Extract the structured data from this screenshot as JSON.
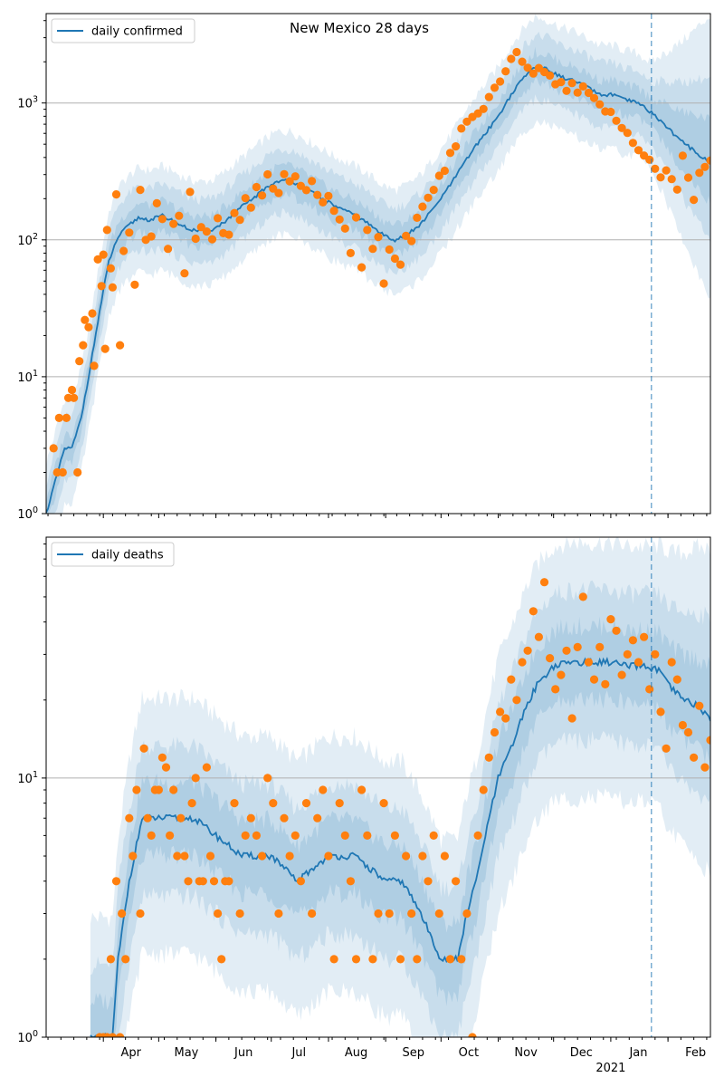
{
  "title": "New Mexico 28 days",
  "colors": {
    "line": "#1f77b4",
    "points": "#ff7f0e",
    "band": "#1f77b4",
    "grid": "#b0b0b0",
    "vline": "#1f77b4"
  },
  "x_axis": {
    "start": "2020-03-01",
    "end": "2021-02-24",
    "month_labels": [
      {
        "date": "2020-04-01",
        "label": "Apr"
      },
      {
        "date": "2020-05-01",
        "label": "May"
      },
      {
        "date": "2020-06-01",
        "label": "Jun"
      },
      {
        "date": "2020-07-01",
        "label": "Jul"
      },
      {
        "date": "2020-08-01",
        "label": "Aug"
      },
      {
        "date": "2020-09-01",
        "label": "Sep"
      },
      {
        "date": "2020-10-01",
        "label": "Oct"
      },
      {
        "date": "2020-11-01",
        "label": "Nov"
      },
      {
        "date": "2020-12-01",
        "label": "Dec"
      },
      {
        "date": "2021-01-01",
        "label": "Jan"
      },
      {
        "date": "2021-02-01",
        "label": "Feb"
      }
    ],
    "year_label": "2021",
    "forecast_start": "2021-01-23"
  },
  "chart_data": [
    {
      "type": "line",
      "scale": "log",
      "ylim": [
        1,
        4500
      ],
      "yticks": [
        {
          "v": 1,
          "label": "10^0"
        },
        {
          "v": 10,
          "label": "10^1"
        },
        {
          "v": 100,
          "label": "10^2"
        },
        {
          "v": 1000,
          "label": "10^3"
        }
      ],
      "legend": "daily confirmed",
      "legend_loc": "upper-left",
      "grid": "horizontal",
      "model": {
        "dates": [
          "2020-03-01",
          "2020-03-11",
          "2020-03-15",
          "2020-03-20",
          "2020-03-25",
          "2020-03-30",
          "2020-04-04",
          "2020-04-09",
          "2020-04-14",
          "2020-04-20",
          "2020-04-26",
          "2020-05-03",
          "2020-05-10",
          "2020-05-17",
          "2020-05-24",
          "2020-05-31",
          "2020-06-07",
          "2020-06-14",
          "2020-06-21",
          "2020-06-28",
          "2020-07-05",
          "2020-07-12",
          "2020-07-19",
          "2020-07-26",
          "2020-08-02",
          "2020-08-09",
          "2020-08-16",
          "2020-08-23",
          "2020-08-30",
          "2020-09-06",
          "2020-09-13",
          "2020-09-20",
          "2020-09-27",
          "2020-10-04",
          "2020-10-11",
          "2020-10-18",
          "2020-10-25",
          "2020-11-01",
          "2020-11-08",
          "2020-11-15",
          "2020-11-21",
          "2020-11-28",
          "2020-12-05",
          "2020-12-12",
          "2020-12-19",
          "2020-12-26",
          "2021-01-02",
          "2021-01-09",
          "2021-01-16",
          "2021-01-23",
          "2021-01-30",
          "2021-02-06",
          "2021-02-13",
          "2021-02-20",
          "2021-02-24"
        ],
        "values": [
          1,
          3,
          3,
          5,
          12,
          30,
          70,
          105,
          125,
          145,
          140,
          150,
          135,
          120,
          115,
          120,
          140,
          170,
          200,
          240,
          270,
          270,
          240,
          210,
          185,
          165,
          150,
          130,
          110,
          100,
          110,
          130,
          170,
          230,
          320,
          450,
          600,
          800,
          1150,
          1550,
          1850,
          1750,
          1550,
          1450,
          1300,
          1150,
          1150,
          1050,
          1000,
          850,
          700,
          560,
          470,
          400,
          360
        ],
        "band_inner": [
          0.78,
          1.28
        ],
        "band_mid": [
          0.58,
          1.7
        ],
        "band_outer": [
          0.4,
          2.3
        ],
        "forecast_outer": [
          0.1,
          12
        ]
      },
      "observed": {
        "dates": [
          "2020-03-05",
          "2020-03-07",
          "2020-03-08",
          "2020-03-10",
          "2020-03-12",
          "2020-03-13",
          "2020-03-15",
          "2020-03-16",
          "2020-03-18",
          "2020-03-19",
          "2020-03-21",
          "2020-03-22",
          "2020-03-24",
          "2020-03-26",
          "2020-03-27",
          "2020-03-29",
          "2020-03-31",
          "2020-04-01",
          "2020-04-02",
          "2020-04-03",
          "2020-04-05",
          "2020-04-06",
          "2020-04-08",
          "2020-04-10",
          "2020-04-12",
          "2020-04-15",
          "2020-04-18",
          "2020-04-21",
          "2020-04-24",
          "2020-04-27",
          "2020-04-30",
          "2020-05-03",
          "2020-05-06",
          "2020-05-09",
          "2020-05-12",
          "2020-05-15",
          "2020-05-18",
          "2020-05-21",
          "2020-05-24",
          "2020-05-27",
          "2020-05-30",
          "2020-06-02",
          "2020-06-05",
          "2020-06-08",
          "2020-06-11",
          "2020-06-14",
          "2020-06-17",
          "2020-06-20",
          "2020-06-23",
          "2020-06-26",
          "2020-06-29",
          "2020-07-02",
          "2020-07-05",
          "2020-07-08",
          "2020-07-11",
          "2020-07-14",
          "2020-07-17",
          "2020-07-20",
          "2020-07-23",
          "2020-07-26",
          "2020-07-29",
          "2020-08-01",
          "2020-08-04",
          "2020-08-07",
          "2020-08-10",
          "2020-08-13",
          "2020-08-16",
          "2020-08-19",
          "2020-08-22",
          "2020-08-25",
          "2020-08-28",
          "2020-08-31",
          "2020-09-03",
          "2020-09-06",
          "2020-09-09",
          "2020-09-12",
          "2020-09-15",
          "2020-09-18",
          "2020-09-21",
          "2020-09-24",
          "2020-09-27",
          "2020-09-30",
          "2020-10-03",
          "2020-10-06",
          "2020-10-09",
          "2020-10-12",
          "2020-10-15",
          "2020-10-18",
          "2020-10-21",
          "2020-10-24",
          "2020-10-27",
          "2020-10-30",
          "2020-11-02",
          "2020-11-05",
          "2020-11-08",
          "2020-11-11",
          "2020-11-14",
          "2020-11-17",
          "2020-11-20",
          "2020-11-23",
          "2020-11-26",
          "2020-11-29",
          "2020-12-02",
          "2020-12-05",
          "2020-12-08",
          "2020-12-11",
          "2020-12-14",
          "2020-12-17",
          "2020-12-20",
          "2020-12-23",
          "2020-12-26",
          "2020-12-29",
          "2021-01-01",
          "2021-01-04",
          "2021-01-07",
          "2021-01-10",
          "2021-01-13",
          "2021-01-16",
          "2021-01-19",
          "2021-01-22",
          "2021-01-25",
          "2021-01-28",
          "2021-01-31",
          "2021-02-03",
          "2021-02-06",
          "2021-02-09",
          "2021-02-12",
          "2021-02-15",
          "2021-02-18",
          "2021-02-21",
          "2021-02-24"
        ],
        "values": [
          3,
          2,
          5,
          2,
          5,
          7,
          8,
          7,
          2,
          13,
          17,
          26,
          23,
          29,
          12,
          72,
          46,
          78,
          16,
          118,
          62,
          45,
          215,
          17,
          83,
          113,
          47,
          232,
          100,
          106,
          185,
          142,
          86,
          131,
          150,
          57,
          224,
          102,
          124,
          115,
          101,
          144,
          112,
          109,
          157,
          140,
          202,
          172,
          243,
          211,
          301,
          237,
          220,
          302,
          268,
          291,
          248,
          231,
          269,
          213,
          188,
          209,
          163,
          141,
          121,
          80,
          146,
          63,
          118,
          86,
          105,
          48,
          85,
          73,
          66,
          107,
          98,
          145,
          175,
          203,
          232,
          294,
          320,
          432,
          482,
          651,
          731,
          791,
          839,
          905,
          1105,
          1292,
          1435,
          1704,
          2099,
          2353,
          2003,
          1809,
          1641,
          1802,
          1683,
          1586,
          1370,
          1423,
          1227,
          1398,
          1191,
          1322,
          1186,
          1085,
          978,
          868,
          861,
          742,
          657,
          605,
          511,
          452,
          413,
          385,
          331,
          286,
          322,
          278,
          233,
          412,
          285,
          196,
          309,
          341,
          380
        ]
      }
    },
    {
      "type": "line",
      "scale": "log",
      "ylim": [
        1,
        85
      ],
      "yticks": [
        {
          "v": 1,
          "label": "10^0"
        },
        {
          "v": 10,
          "label": "10^1"
        }
      ],
      "legend": "daily deaths",
      "legend_loc": "upper-left",
      "grid": "horizontal",
      "model": {
        "dates": [
          "2020-03-25",
          "2020-03-30",
          "2020-04-06",
          "2020-04-09",
          "2020-04-15",
          "2020-04-22",
          "2020-05-01",
          "2020-05-10",
          "2020-05-20",
          "2020-06-01",
          "2020-06-15",
          "2020-07-01",
          "2020-07-15",
          "2020-08-01",
          "2020-08-15",
          "2020-09-01",
          "2020-09-10",
          "2020-09-20",
          "2020-10-01",
          "2020-10-10",
          "2020-10-15",
          "2020-10-20",
          "2020-10-25",
          "2020-11-01",
          "2020-11-08",
          "2020-11-15",
          "2020-11-22",
          "2020-12-01",
          "2020-12-10",
          "2020-12-20",
          "2021-01-01",
          "2021-01-10",
          "2021-01-20",
          "2021-01-27",
          "2021-02-03",
          "2021-02-10",
          "2021-02-17",
          "2021-02-24"
        ],
        "values": [
          1,
          1,
          1,
          2,
          4,
          7,
          7,
          7,
          7,
          6,
          5,
          5,
          4,
          5,
          5,
          4,
          4,
          3,
          2,
          2,
          3,
          4,
          6,
          10,
          13,
          18,
          23,
          27,
          28,
          28,
          28,
          27,
          27,
          26,
          22,
          20,
          19,
          17
        ],
        "band_inner": [
          0.72,
          1.38
        ],
        "band_mid": [
          0.5,
          1.9
        ],
        "band_outer": [
          0.3,
          2.9
        ],
        "forecast_outer": [
          0.25,
          4.5
        ]
      },
      "observed": {
        "dates": [
          "2020-03-30",
          "2020-04-01",
          "2020-04-03",
          "2020-04-05",
          "2020-04-06",
          "2020-04-08",
          "2020-04-10",
          "2020-04-11",
          "2020-04-13",
          "2020-04-15",
          "2020-04-17",
          "2020-04-19",
          "2020-04-21",
          "2020-04-23",
          "2020-04-25",
          "2020-04-27",
          "2020-04-29",
          "2020-05-01",
          "2020-05-03",
          "2020-05-05",
          "2020-05-07",
          "2020-05-09",
          "2020-05-11",
          "2020-05-13",
          "2020-05-15",
          "2020-05-17",
          "2020-05-19",
          "2020-05-21",
          "2020-05-23",
          "2020-05-25",
          "2020-05-27",
          "2020-05-29",
          "2020-05-31",
          "2020-06-02",
          "2020-06-04",
          "2020-06-06",
          "2020-06-08",
          "2020-06-11",
          "2020-06-14",
          "2020-06-17",
          "2020-06-20",
          "2020-06-23",
          "2020-06-26",
          "2020-06-29",
          "2020-07-02",
          "2020-07-05",
          "2020-07-08",
          "2020-07-11",
          "2020-07-14",
          "2020-07-17",
          "2020-07-20",
          "2020-07-23",
          "2020-07-26",
          "2020-07-29",
          "2020-08-01",
          "2020-08-04",
          "2020-08-07",
          "2020-08-10",
          "2020-08-13",
          "2020-08-16",
          "2020-08-19",
          "2020-08-22",
          "2020-08-25",
          "2020-08-28",
          "2020-08-31",
          "2020-09-03",
          "2020-09-06",
          "2020-09-09",
          "2020-09-12",
          "2020-09-15",
          "2020-09-18",
          "2020-09-21",
          "2020-09-24",
          "2020-09-27",
          "2020-09-30",
          "2020-10-03",
          "2020-10-06",
          "2020-10-09",
          "2020-10-12",
          "2020-10-15",
          "2020-10-18",
          "2020-10-21",
          "2020-10-24",
          "2020-10-27",
          "2020-10-30",
          "2020-11-02",
          "2020-11-05",
          "2020-11-08",
          "2020-11-11",
          "2020-11-14",
          "2020-11-17",
          "2020-11-20",
          "2020-11-23",
          "2020-11-26",
          "2020-11-29",
          "2020-12-02",
          "2020-12-05",
          "2020-12-08",
          "2020-12-11",
          "2020-12-14",
          "2020-12-17",
          "2020-12-20",
          "2020-12-23",
          "2020-12-26",
          "2020-12-29",
          "2021-01-01",
          "2021-01-04",
          "2021-01-07",
          "2021-01-10",
          "2021-01-13",
          "2021-01-16",
          "2021-01-19",
          "2021-01-22",
          "2021-01-25",
          "2021-01-28",
          "2021-01-31",
          "2021-02-03",
          "2021-02-06",
          "2021-02-09",
          "2021-02-12",
          "2021-02-15",
          "2021-02-18",
          "2021-02-21",
          "2021-02-24"
        ],
        "values": [
          1,
          1,
          1,
          2,
          1,
          4,
          1,
          3,
          2,
          7,
          5,
          9,
          3,
          13,
          7,
          6,
          9,
          9,
          12,
          11,
          6,
          9,
          5,
          7,
          5,
          4,
          8,
          10,
          4,
          4,
          11,
          5,
          4,
          3,
          2,
          4,
          4,
          8,
          3,
          6,
          7,
          6,
          5,
          10,
          8,
          3,
          7,
          5,
          6,
          4,
          8,
          3,
          7,
          9,
          5,
          2,
          8,
          6,
          4,
          2,
          9,
          6,
          2,
          3,
          8,
          3,
          6,
          2,
          5,
          3,
          2,
          5,
          4,
          6,
          3,
          5,
          2,
          4,
          2,
          3,
          1,
          6,
          9,
          12,
          15,
          18,
          17,
          24,
          20,
          28,
          31,
          44,
          35,
          57,
          29,
          22,
          25,
          31,
          17,
          32,
          50,
          28,
          24,
          32,
          23,
          41,
          37,
          25,
          30,
          34,
          28,
          35,
          22,
          30,
          18,
          13,
          28,
          24,
          16,
          15,
          12,
          19,
          11,
          14
        ]
      }
    }
  ]
}
